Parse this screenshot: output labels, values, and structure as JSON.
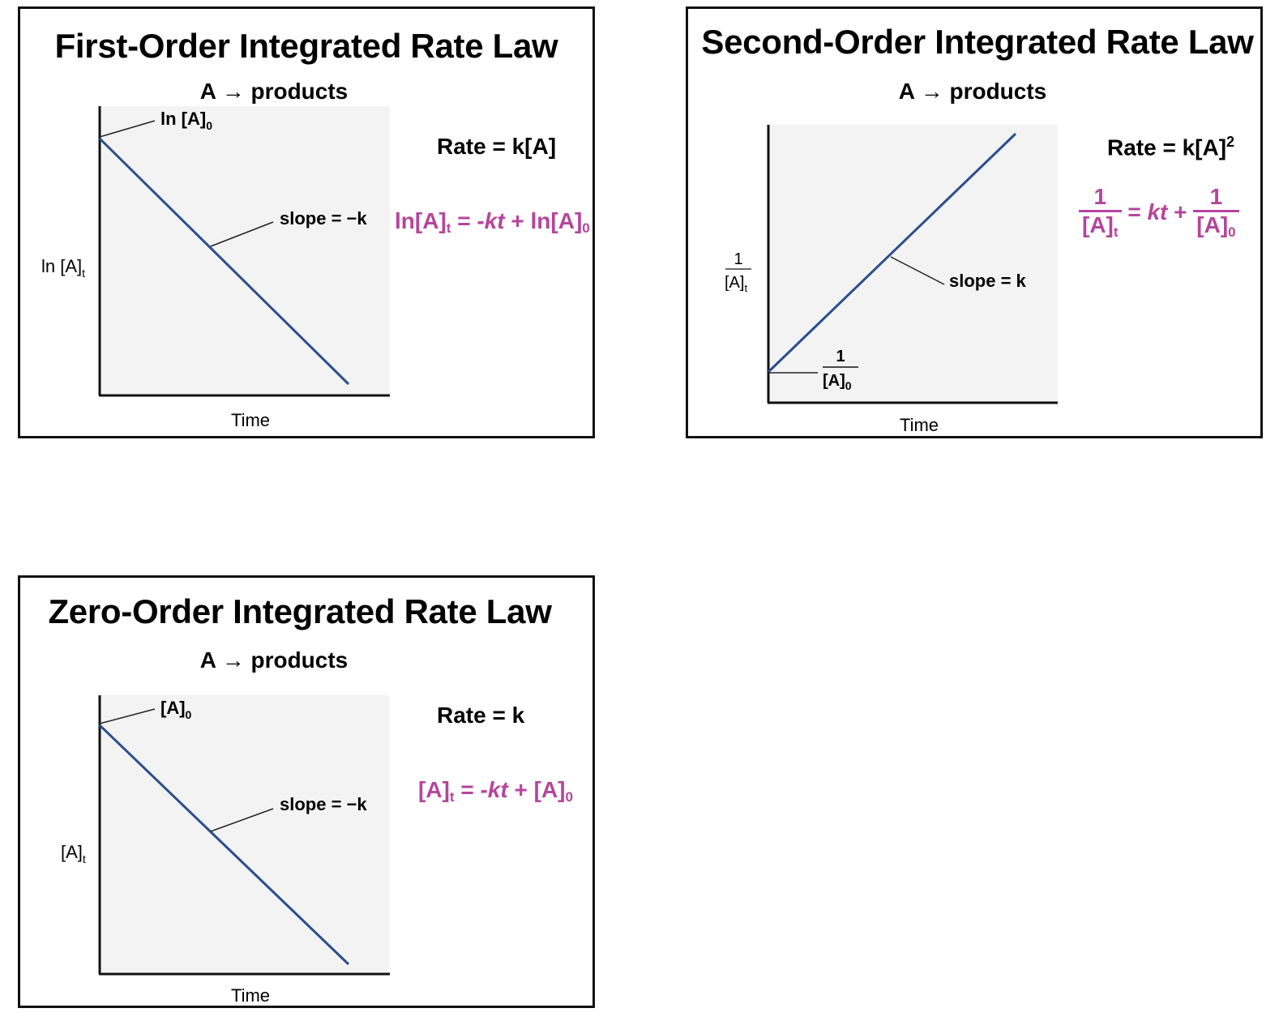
{
  "colors": {
    "line": "#2a4e8e",
    "equation": "#b5459b",
    "plot_bg": "#f3f3f3",
    "axis": "#111111",
    "leader": "#222222"
  },
  "panels": {
    "first": {
      "title": "First-Order Integrated Rate Law",
      "reaction": "A → products",
      "rate_law": "Rate = k[A]",
      "equation": {
        "lhs": "ln[A]",
        "lhs_sub": "t",
        "eq": " = ",
        "term": "-kt",
        "plus": " + ",
        "rhs": "ln[A]",
        "rhs_sub": "0"
      },
      "y_label": "ln [A]",
      "y_label_sub": "t",
      "x_label": "Time",
      "intercept_label": "ln [A]",
      "intercept_sub": "0",
      "slope_label": "slope = −k"
    },
    "second": {
      "title": "Second-Order Integrated Rate Law",
      "reaction": "A → products",
      "rate_law": "Rate = k[A]",
      "rate_law_sup": "2",
      "equation": {
        "num1": "1",
        "den1": "[A]",
        "den1_sub": "t",
        "eq": " = ",
        "term": "kt",
        "plus": " + ",
        "num2": "1",
        "den2": "[A]",
        "den2_sub": "0"
      },
      "y_label_num": "1",
      "y_label_den": "[A]",
      "y_label_sub": "t",
      "x_label": "Time",
      "intercept_num": "1",
      "intercept_den": "[A]",
      "intercept_sub": "0",
      "slope_label": "slope = k"
    },
    "zero": {
      "title": "Zero-Order Integrated Rate Law",
      "reaction": "A → products",
      "rate_law": "Rate = k",
      "equation": {
        "lhs": "[A]",
        "lhs_sub": "t",
        "eq": " = ",
        "term": "-kt",
        "plus": " + ",
        "rhs": "[A]",
        "rhs_sub": "0"
      },
      "y_label": "[A]",
      "y_label_sub": "t",
      "x_label": "Time",
      "intercept_label": "[A]",
      "intercept_sub": "0",
      "slope_label": "slope = −k"
    }
  }
}
